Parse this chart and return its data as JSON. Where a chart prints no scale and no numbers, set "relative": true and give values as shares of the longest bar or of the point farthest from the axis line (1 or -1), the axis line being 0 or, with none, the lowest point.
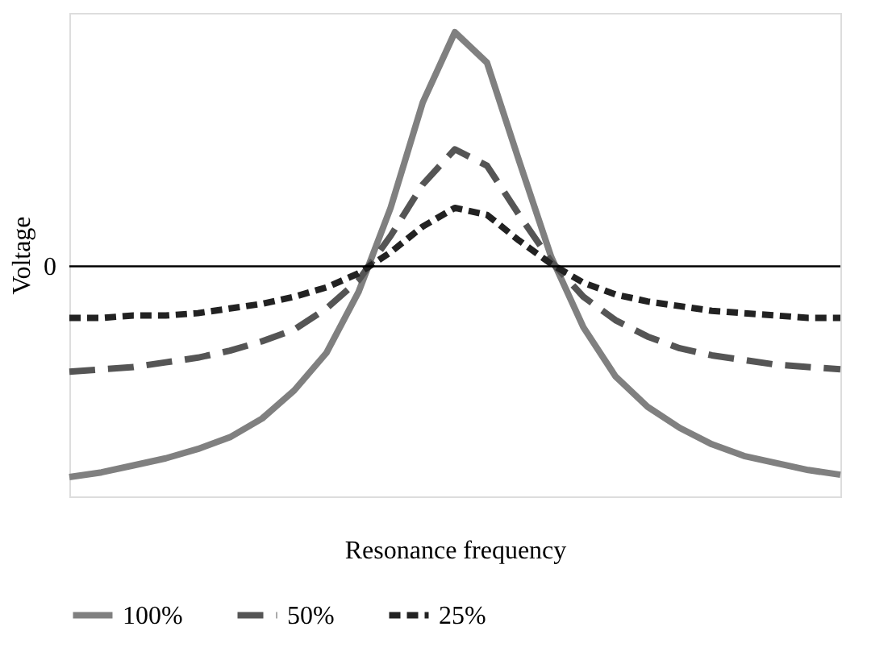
{
  "chart_data": {
    "type": "line",
    "relative": true,
    "xlabel": "Resonance frequency",
    "ylabel": "Voltage",
    "legend": "bottom",
    "categories": [
      null,
      null,
      null,
      null,
      null,
      null,
      null,
      null,
      null,
      null,
      null,
      null,
      null,
      null,
      null,
      null,
      null,
      null,
      null,
      null,
      null,
      null,
      null,
      null,
      null
    ],
    "ref_lines": [
      {
        "axis": "y",
        "value": 0,
        "label": "0",
        "color": "#000000"
      }
    ],
    "series": [
      {
        "name": "100%",
        "color": "#808080",
        "line_style": "solid",
        "values": [
          -0.9,
          -0.88,
          -0.85,
          -0.82,
          -0.78,
          -0.73,
          -0.65,
          -0.53,
          -0.37,
          -0.11,
          0.25,
          0.7,
          1,
          0.87,
          0.45,
          0.04,
          -0.26,
          -0.47,
          -0.6,
          -0.69,
          -0.76,
          -0.81,
          -0.84,
          -0.87,
          -0.89
        ]
      },
      {
        "name": "50%",
        "color": "#555555",
        "line_style": "dashed",
        "values": [
          -0.45,
          -0.44,
          -0.43,
          -0.41,
          -0.39,
          -0.36,
          -0.32,
          -0.27,
          -0.18,
          -0.06,
          0.13,
          0.35,
          0.5,
          0.43,
          0.22,
          0.02,
          -0.13,
          -0.23,
          -0.3,
          -0.35,
          -0.38,
          -0.4,
          -0.42,
          -0.43,
          -0.44
        ]
      },
      {
        "name": "25%",
        "color": "#222222",
        "line_style": "dotted",
        "values": [
          -0.22,
          -0.22,
          -0.21,
          -0.21,
          -0.2,
          -0.18,
          -0.16,
          -0.13,
          -0.09,
          -0.03,
          0.06,
          0.17,
          0.25,
          0.22,
          0.11,
          0.01,
          -0.07,
          -0.12,
          -0.15,
          -0.17,
          -0.19,
          -0.2,
          -0.21,
          -0.22,
          -0.22
        ]
      }
    ]
  }
}
